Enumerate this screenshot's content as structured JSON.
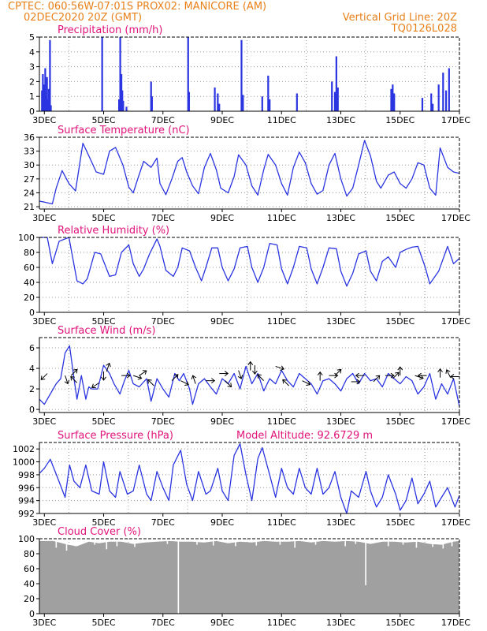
{
  "header": {
    "line1": "CPTEC:   060:56W-07:01S   PROX02: MANICORE (AM)",
    "line2_left": "02DEC2020 20Z (GMT)",
    "line2_right": "Vertical Grid Line: 20Z",
    "line3_right": "TQ0126L028"
  },
  "annotations": {
    "model_altitude": "Model Altitude: 92.6729 m"
  },
  "colors": {
    "series": "#2a34e0",
    "cloud": "#a0a0a0",
    "header": "#e8801a",
    "title": "#e0137a",
    "grid": "#9a9a9a"
  },
  "x_axis": {
    "start": 2.8333,
    "end": 17.0,
    "ticks": [
      3,
      5,
      7,
      9,
      11,
      13,
      15,
      17
    ],
    "tick_labels": [
      "3DEC",
      "5DEC",
      "7DEC",
      "9DEC",
      "11DEC",
      "13DEC",
      "15DEC",
      "17DEC"
    ],
    "gridlines": [
      3.8333,
      5.8333,
      7.8333,
      9.8333,
      11.8333,
      13.8333,
      15.8333
    ]
  },
  "chart_data": [
    {
      "type": "bar",
      "title": "Precipitation (mm/h)",
      "ylim": [
        0,
        5
      ],
      "yticks": [
        0,
        1,
        2,
        3,
        4,
        5
      ],
      "bars": [
        [
          2.92,
          1.4
        ],
        [
          2.95,
          2.5
        ],
        [
          2.98,
          1.8
        ],
        [
          3.0,
          1.2
        ],
        [
          3.03,
          2.9
        ],
        [
          3.06,
          1.0
        ],
        [
          3.09,
          2.3
        ],
        [
          3.12,
          0.8
        ],
        [
          3.15,
          1.5
        ],
        [
          3.19,
          4.8
        ],
        [
          3.22,
          0.4
        ],
        [
          4.95,
          5.0
        ],
        [
          5.52,
          0.8
        ],
        [
          5.56,
          5.0
        ],
        [
          5.6,
          2.5
        ],
        [
          5.63,
          1.4
        ],
        [
          5.66,
          0.7
        ],
        [
          5.77,
          0.3
        ],
        [
          6.6,
          2.0
        ],
        [
          6.63,
          1.0
        ],
        [
          7.85,
          5.0
        ],
        [
          7.88,
          1.3
        ],
        [
          8.75,
          1.6
        ],
        [
          8.85,
          1.2
        ],
        [
          8.9,
          0.5
        ],
        [
          9.65,
          4.8
        ],
        [
          9.7,
          1.1
        ],
        [
          10.35,
          1.0
        ],
        [
          10.55,
          2.4
        ],
        [
          10.6,
          0.8
        ],
        [
          11.52,
          1.2
        ],
        [
          12.7,
          2.0
        ],
        [
          12.8,
          1.3
        ],
        [
          12.85,
          3.7
        ],
        [
          12.9,
          1.6
        ],
        [
          14.7,
          1.5
        ],
        [
          14.75,
          1.8
        ],
        [
          14.8,
          1.2
        ],
        [
          15.75,
          0.9
        ],
        [
          16.05,
          1.2
        ],
        [
          16.1,
          0.5
        ],
        [
          16.3,
          1.8
        ],
        [
          16.45,
          2.6
        ],
        [
          16.55,
          1.4
        ],
        [
          16.65,
          2.9
        ]
      ]
    },
    {
      "type": "line",
      "title": "Surface Temperature (nC)",
      "ylim": [
        20.5,
        36
      ],
      "yticks": [
        21,
        24,
        27,
        30,
        33,
        36
      ],
      "x": [
        2.83,
        3.0,
        3.27,
        3.4,
        3.6,
        3.83,
        4.05,
        4.3,
        4.5,
        4.75,
        5.0,
        5.2,
        5.4,
        5.65,
        5.85,
        6.0,
        6.15,
        6.35,
        6.6,
        6.8,
        6.9,
        7.1,
        7.3,
        7.5,
        7.65,
        7.8,
        8.0,
        8.2,
        8.4,
        8.6,
        8.8,
        8.95,
        9.2,
        9.4,
        9.55,
        9.8,
        10.0,
        10.2,
        10.4,
        10.55,
        10.8,
        11.0,
        11.2,
        11.4,
        11.6,
        11.8,
        12.0,
        12.2,
        12.4,
        12.6,
        12.8,
        13.0,
        13.2,
        13.4,
        13.6,
        13.8,
        14.0,
        14.2,
        14.35,
        14.6,
        14.8,
        15.0,
        15.2,
        15.4,
        15.6,
        15.8,
        16.0,
        16.2,
        16.35,
        16.6,
        16.8,
        17.0
      ],
      "y": [
        22.2,
        22.0,
        21.6,
        25.0,
        28.8,
        26.0,
        24.4,
        34.7,
        32.0,
        28.5,
        28.0,
        33.0,
        33.8,
        30.0,
        25.2,
        24.0,
        27.0,
        30.8,
        29.5,
        31.5,
        26.0,
        23.6,
        27.0,
        30.8,
        31.6,
        28.5,
        25.5,
        23.8,
        29.5,
        32.5,
        29.0,
        25.0,
        24.0,
        27.5,
        32.2,
        30.0,
        25.5,
        23.5,
        29.0,
        32.3,
        30.0,
        26.0,
        23.5,
        29.5,
        32.8,
        30.5,
        26.0,
        23.7,
        24.5,
        30.0,
        32.5,
        27.0,
        23.3,
        25.0,
        30.0,
        35.3,
        32.0,
        26.5,
        25.0,
        27.8,
        28.5,
        26.0,
        25.0,
        27.0,
        30.5,
        30.0,
        25.0,
        23.5,
        33.7,
        29.5,
        28.5,
        28.2
      ]
    },
    {
      "type": "line",
      "title": "Relative Humidity (%)",
      "ylim": [
        0,
        100
      ],
      "yticks": [
        0,
        20,
        40,
        60,
        80,
        100
      ],
      "x": [
        2.83,
        3.1,
        3.27,
        3.5,
        3.83,
        4.1,
        4.3,
        4.45,
        4.7,
        4.9,
        5.2,
        5.4,
        5.6,
        5.85,
        6.0,
        6.2,
        6.35,
        6.55,
        6.8,
        6.9,
        7.1,
        7.35,
        7.5,
        7.65,
        7.9,
        8.1,
        8.3,
        8.45,
        8.65,
        8.85,
        9.0,
        9.2,
        9.4,
        9.6,
        9.85,
        10.0,
        10.2,
        10.4,
        10.6,
        10.85,
        11.0,
        11.2,
        11.4,
        11.6,
        11.85,
        12.0,
        12.2,
        12.4,
        12.6,
        12.85,
        13.0,
        13.2,
        13.4,
        13.6,
        13.85,
        14.0,
        14.2,
        14.4,
        14.6,
        14.85,
        15.0,
        15.2,
        15.4,
        15.6,
        15.85,
        16.0,
        16.3,
        16.6,
        16.8,
        17.0
      ],
      "y": [
        100,
        100,
        65,
        95,
        100,
        42,
        38,
        45,
        80,
        78,
        48,
        50,
        80,
        90,
        65,
        48,
        58,
        78,
        98,
        88,
        56,
        48,
        60,
        86,
        82,
        60,
        42,
        60,
        86,
        86,
        60,
        42,
        58,
        86,
        88,
        60,
        40,
        60,
        92,
        90,
        58,
        38,
        60,
        88,
        86,
        58,
        38,
        60,
        86,
        85,
        55,
        35,
        52,
        78,
        82,
        55,
        42,
        68,
        74,
        60,
        80,
        84,
        87,
        88,
        60,
        38,
        55,
        88,
        65,
        72
      ]
    },
    {
      "type": "line",
      "title": "Surface Wind (m/s)",
      "ylim": [
        -0.3,
        7
      ],
      "yticks": [
        0,
        2,
        4,
        6
      ],
      "x": [
        2.83,
        3.0,
        3.2,
        3.4,
        3.55,
        3.7,
        3.85,
        4.0,
        4.1,
        4.25,
        4.4,
        4.5,
        4.6,
        4.8,
        5.0,
        5.2,
        5.35,
        5.55,
        5.7,
        5.85,
        6.0,
        6.2,
        6.45,
        6.6,
        6.8,
        7.0,
        7.2,
        7.4,
        7.55,
        7.7,
        7.9,
        8.0,
        8.2,
        8.4,
        8.6,
        8.8,
        9.0,
        9.2,
        9.4,
        9.6,
        9.8,
        10.0,
        10.2,
        10.4,
        10.6,
        10.8,
        11.0,
        11.2,
        11.4,
        11.6,
        11.8,
        12.0,
        12.2,
        12.4,
        12.6,
        12.8,
        13.0,
        13.2,
        13.4,
        13.6,
        13.8,
        14.0,
        14.2,
        14.4,
        14.6,
        14.8,
        15.0,
        15.2,
        15.4,
        15.6,
        15.8,
        16.0,
        16.2,
        16.4,
        16.6,
        16.8,
        17.0
      ],
      "y": [
        1.0,
        0.5,
        1.5,
        2.5,
        3.0,
        5.5,
        6.2,
        3.0,
        1.0,
        3.3,
        1.0,
        2.2,
        2.0,
        2.0,
        4.3,
        3.5,
        2.5,
        1.5,
        2.8,
        3.8,
        2.5,
        2.2,
        3.0,
        0.8,
        3.0,
        2.0,
        1.2,
        3.5,
        2.8,
        3.5,
        2.0,
        0.5,
        2.5,
        3.0,
        2.2,
        1.5,
        3.0,
        2.5,
        3.5,
        2.0,
        4.2,
        2.5,
        3.5,
        1.8,
        3.0,
        2.5,
        3.8,
        2.8,
        2.2,
        3.5,
        3.0,
        2.5,
        1.5,
        2.8,
        3.0,
        2.5,
        1.8,
        3.0,
        3.5,
        2.5,
        3.5,
        2.8,
        3.0,
        2.2,
        3.5,
        3.0,
        2.5,
        3.2,
        2.8,
        1.5,
        2.2,
        3.5,
        1.0,
        2.5,
        1.5,
        3.0,
        0.3
      ],
      "arrows": [
        [
          3.1,
          3.5,
          -2,
          -2
        ],
        [
          3.7,
          3.3,
          1,
          -3
        ],
        [
          3.9,
          3.3,
          2,
          2
        ],
        [
          4.1,
          2.6,
          -2,
          2
        ],
        [
          4.85,
          2.6,
          -3,
          -2
        ],
        [
          5.0,
          3.7,
          0,
          -3
        ],
        [
          5.1,
          3.7,
          1,
          3
        ],
        [
          5.6,
          3.3,
          3,
          0
        ],
        [
          6.0,
          3.3,
          3,
          -1
        ],
        [
          6.2,
          3.3,
          3,
          2
        ],
        [
          6.7,
          2.3,
          -2,
          2
        ],
        [
          7.3,
          2.8,
          2,
          2
        ],
        [
          7.6,
          2.8,
          2,
          -1
        ],
        [
          8.1,
          2.5,
          -1,
          3
        ],
        [
          8.45,
          2.8,
          3,
          0
        ],
        [
          8.9,
          3.5,
          3,
          0
        ],
        [
          9.1,
          2.8,
          2,
          -2
        ],
        [
          9.55,
          3.8,
          1,
          -3
        ],
        [
          9.95,
          3.8,
          0,
          3
        ],
        [
          10.1,
          4.3,
          0,
          -3
        ],
        [
          10.4,
          2.8,
          -2,
          2
        ],
        [
          10.8,
          4.2,
          3,
          -1
        ],
        [
          11.25,
          2.3,
          -2,
          2
        ],
        [
          11.7,
          2.8,
          2,
          -1
        ],
        [
          12.3,
          2.8,
          0,
          3
        ],
        [
          12.6,
          3.3,
          3,
          0
        ],
        [
          12.8,
          3.3,
          2,
          2
        ],
        [
          13.35,
          2.7,
          3,
          0
        ],
        [
          13.8,
          3.3,
          -3,
          0
        ],
        [
          14.1,
          2.7,
          2,
          2
        ],
        [
          14.5,
          3.3,
          3,
          0
        ],
        [
          14.75,
          3.0,
          2,
          2
        ],
        [
          15.0,
          3.3,
          0,
          2
        ],
        [
          15.5,
          3.3,
          3,
          -1
        ],
        [
          15.9,
          3.3,
          -3,
          0
        ],
        [
          16.35,
          3.1,
          0,
          3
        ],
        [
          16.7,
          3.1,
          -1,
          2
        ],
        [
          17.0,
          3.2,
          -3,
          0
        ]
      ]
    },
    {
      "type": "line",
      "title": "Surface Pressure (hPa)",
      "ylim": [
        992,
        1003
      ],
      "yticks": [
        992,
        994,
        996,
        998,
        1000,
        1002
      ],
      "x": [
        2.83,
        3.0,
        3.2,
        3.45,
        3.7,
        3.85,
        4.0,
        4.2,
        4.4,
        4.6,
        4.85,
        5.0,
        5.2,
        5.4,
        5.55,
        5.8,
        6.0,
        6.2,
        6.45,
        6.6,
        6.8,
        7.0,
        7.2,
        7.35,
        7.6,
        7.8,
        8.0,
        8.2,
        8.45,
        8.6,
        8.85,
        9.0,
        9.2,
        9.4,
        9.6,
        9.8,
        10.0,
        10.2,
        10.35,
        10.6,
        10.8,
        11.0,
        11.2,
        11.4,
        11.6,
        11.8,
        12.0,
        12.2,
        12.4,
        12.6,
        12.8,
        13.0,
        13.2,
        13.35,
        13.6,
        13.85,
        14.0,
        14.2,
        14.4,
        14.6,
        14.85,
        15.0,
        15.2,
        15.4,
        15.6,
        15.8,
        16.0,
        16.2,
        16.4,
        16.6,
        16.85,
        17.0
      ],
      "y": [
        998.2,
        999.0,
        1000.4,
        997.5,
        994.5,
        999.5,
        997.0,
        996.0,
        999.5,
        995.5,
        995.0,
        1000.0,
        995.5,
        994.5,
        998.5,
        995.0,
        995.5,
        999.5,
        995.0,
        994.0,
        998.5,
        996.0,
        994.0,
        999.5,
        1001.8,
        996.5,
        994.0,
        998.5,
        995.0,
        995.5,
        999.0,
        995.5,
        994.0,
        1001.0,
        1002.8,
        998.0,
        994.0,
        1000.5,
        1002.2,
        998.0,
        994.5,
        999.0,
        996.0,
        995.0,
        999.0,
        996.0,
        995.0,
        999.0,
        995.0,
        996.0,
        998.5,
        994.5,
        992.0,
        995.5,
        994.5,
        998.5,
        995.5,
        993.0,
        994.5,
        998.0,
        995.0,
        992.5,
        994.0,
        997.5,
        993.5,
        995.0,
        997.0,
        993.0,
        994.5,
        996.0,
        993.0,
        994.8
      ]
    },
    {
      "type": "area",
      "title": "Cloud Cover (%)",
      "ylim": [
        0,
        100
      ],
      "yticks": [
        0,
        20,
        40,
        60,
        80,
        100
      ],
      "x": [
        2.83,
        3.3,
        3.8,
        4.1,
        4.5,
        4.85,
        5.2,
        5.6,
        6.0,
        6.4,
        6.8,
        7.2,
        7.6,
        8.0,
        8.4,
        8.8,
        9.2,
        9.6,
        10.0,
        10.4,
        10.8,
        11.2,
        11.6,
        12.0,
        12.4,
        12.8,
        13.2,
        13.6,
        14.0,
        14.4,
        14.8,
        15.2,
        15.6,
        16.0,
        16.4,
        16.8,
        17.0
      ],
      "y": [
        97,
        97,
        92,
        90,
        96,
        94,
        96,
        96,
        93,
        95,
        96,
        97,
        96,
        96,
        95,
        97,
        94,
        96,
        95,
        97,
        96,
        96,
        97,
        95,
        97,
        96,
        97,
        96,
        93,
        96,
        96,
        95,
        96,
        93,
        92,
        96,
        97
      ],
      "notches": [
        [
          3.4,
          88
        ],
        [
          3.75,
          84
        ],
        [
          4.05,
          90
        ],
        [
          4.7,
          92
        ],
        [
          5.1,
          86
        ],
        [
          5.45,
          90
        ],
        [
          6.05,
          89
        ],
        [
          7.15,
          93
        ],
        [
          7.52,
          0
        ],
        [
          8.15,
          92
        ],
        [
          8.7,
          91
        ],
        [
          9.45,
          90
        ],
        [
          10.15,
          91
        ],
        [
          10.95,
          92
        ],
        [
          11.45,
          88
        ],
        [
          12.15,
          92
        ],
        [
          13.15,
          90
        ],
        [
          13.5,
          93
        ],
        [
          13.84,
          38
        ],
        [
          14.6,
          90
        ],
        [
          15.1,
          92
        ],
        [
          15.55,
          88
        ],
        [
          16.1,
          89
        ],
        [
          16.45,
          87
        ],
        [
          16.75,
          90
        ]
      ]
    }
  ]
}
